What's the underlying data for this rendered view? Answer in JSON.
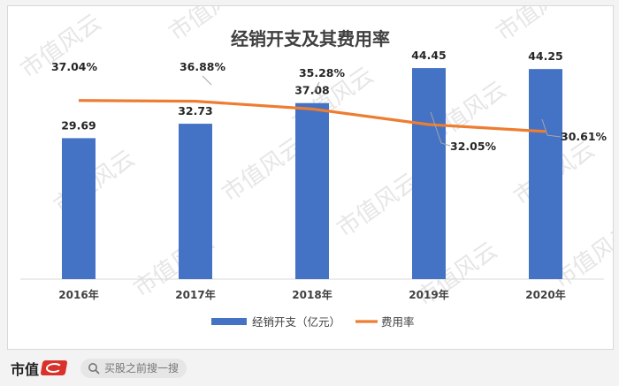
{
  "chart_data": {
    "type": "bar",
    "title": "经销开支及其费用率",
    "categories": [
      "2016年",
      "2017年",
      "2018年",
      "2019年",
      "2020年"
    ],
    "series": [
      {
        "name": "经销开支（亿元）",
        "type": "bar",
        "values": [
          29.69,
          32.73,
          37.08,
          44.45,
          44.25
        ],
        "labels": [
          "29.69",
          "32.73",
          "37.08",
          "44.45",
          "44.25"
        ],
        "color": "#4472c4"
      },
      {
        "name": "费用率",
        "type": "line",
        "values": [
          37.04,
          36.88,
          35.28,
          32.05,
          30.61
        ],
        "labels": [
          "37.04%",
          "36.88%",
          "35.28%",
          "32.05%",
          "30.61%"
        ],
        "color": "#ed7d31"
      }
    ],
    "ylim_bar": [
      0,
      50
    ],
    "ylim_line": [
      0,
      42
    ],
    "legend_position": "bottom",
    "grid": false
  },
  "watermark_text": "市值风云",
  "footer": {
    "brand": "市值",
    "search_placeholder": "买股之前搜一搜"
  },
  "colors": {
    "bar": "#4472c4",
    "line": "#ed7d31",
    "brand": "#d8322a"
  },
  "icons": [
    "search-icon",
    "brand-logo-icon"
  ]
}
